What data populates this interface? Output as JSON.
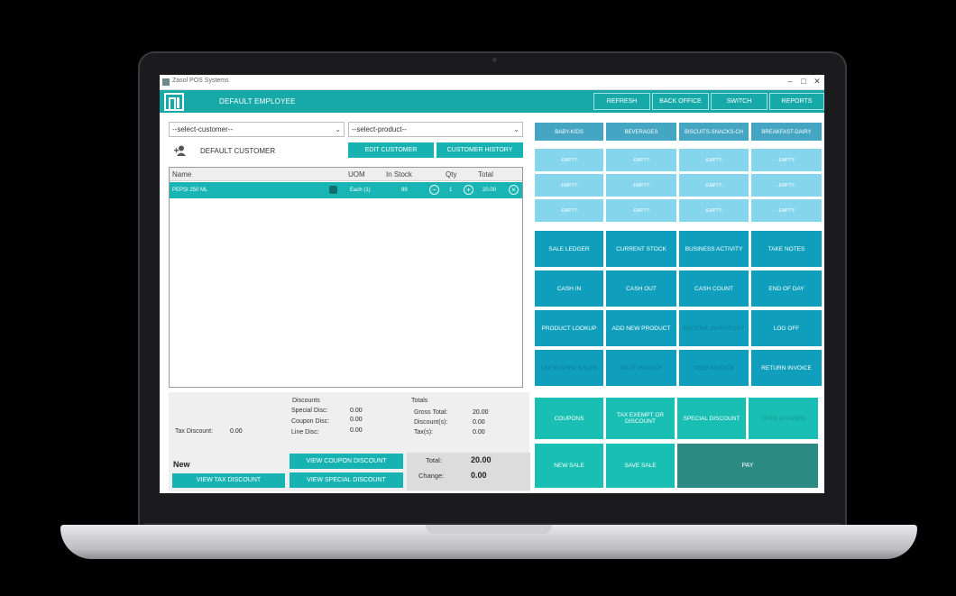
{
  "window": {
    "title": "Zasol POS Systems"
  },
  "header": {
    "employee": "DEFAULT EMPLOYEE",
    "buttons": [
      "REFRESH",
      "BACK OFFICE",
      "SWITCH",
      "REPORTS"
    ]
  },
  "customer_select": {
    "value": "--select-customer--"
  },
  "product_select": {
    "value": "--select-product--"
  },
  "customer": {
    "name": "DEFAULT CUSTOMER",
    "edit_label": "EDIT CUSTOMER",
    "history_label": "CUSTOMER HISTORY"
  },
  "grid": {
    "columns": [
      "Name",
      "UOM",
      "In Stock",
      "Qty",
      "Total"
    ],
    "rows": [
      {
        "name": "PEPSI 250 ML",
        "uom": "Each (1)",
        "in_stock": "99",
        "qty": "1",
        "total": "20.00"
      }
    ]
  },
  "discounts": {
    "heading": "Discounts",
    "special_label": "Special Disc:",
    "special_value": "0.00",
    "coupon_label": "Coupon Disc:",
    "coupon_value": "0.00",
    "line_label": "Line Disc:",
    "line_value": "0.00",
    "tax_label": "Tax Discount:",
    "tax_value": "0.00"
  },
  "totals": {
    "heading": "Totals",
    "gross_label": "Gross Total:",
    "gross_value": "20.00",
    "discounts_label": "Discount(s):",
    "discounts_value": "0.00",
    "tax_label": "Tax(s):",
    "tax_value": "0.00",
    "total_label": "Total:",
    "total_value": "20.00",
    "change_label": "Change:",
    "change_value": "0.00"
  },
  "status": "New",
  "bottom_buttons": {
    "view_tax": "VIEW TAX DISCOUNT",
    "view_coupon": "VIEW COUPON DISCOUNT",
    "view_special": "VIEW SPECIAL DISCOUNT"
  },
  "categories": [
    "BABY-KIDS",
    "BEVERAGES",
    "BISCUITS-SNACKS-CH",
    "BREAKFAST-DAIRY"
  ],
  "empty_slot_label": "-EMPTY-",
  "actions": [
    "SALE LEDGER",
    "CURRENT STOCK",
    "BUSINESS ACTIVITY",
    "TAKE NOTES",
    "CASH IN",
    "CASH OUT",
    "CASH COUNT",
    "END OF DAY",
    "PRODUCT LOOKUP",
    "ADD NEW PRODUCT",
    "RECEIVE INVENTORY",
    "LOG OFF",
    "UNFINISHED SALES",
    "SPLIT INVOICE",
    "VOID INVOICE",
    "RETURN INVOICE"
  ],
  "sale_actions": {
    "coupons": "COUPONS",
    "tax_exempt": "TAX EXEMPT OR DISCOUNT",
    "special_discount": "SPECIAL DISCOUNT",
    "open_drawer": "OPEN DRAWER",
    "new_sale": "NEW SALE",
    "save_sale": "SAVE SALE",
    "pay": "PAY"
  }
}
